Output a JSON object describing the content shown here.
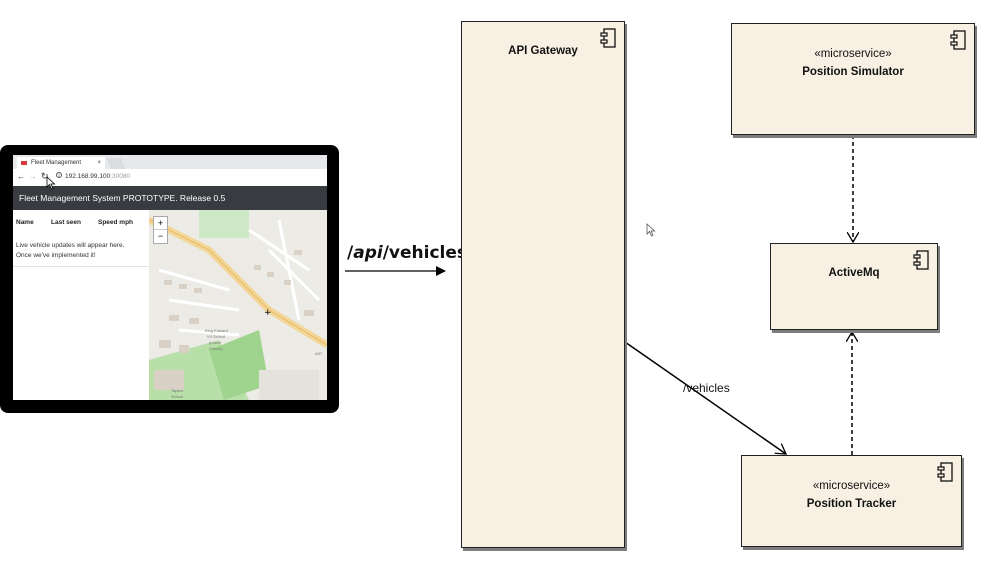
{
  "browser": {
    "tab_title": "Fleet Management",
    "tab_close": "×",
    "address_host": "192.168.99.100",
    "address_port": ":30080",
    "app_header": "Fleet Management System PROTOTYPE. Release 0.5",
    "table_headers": [
      "Name",
      "Last seen",
      "Speed mph"
    ],
    "message_line1": "Live vehicle updates will appear here.",
    "message_line2": "Once we've implemented it!",
    "zoom_in": "+",
    "zoom_out": "−",
    "map_labels": [
      "King Edward",
      "VII School",
      "(Lower",
      "School)",
      "Tapton",
      "School",
      "A57"
    ]
  },
  "arrow_label": {
    "slash1": "/",
    "italic": "api",
    "rest": "/vehicles"
  },
  "components": {
    "gateway": {
      "name": "API Gateway"
    },
    "simulator": {
      "stereotype": "«microservice»",
      "name": "Position Simulator"
    },
    "activemq": {
      "name": "ActiveMq"
    },
    "tracker": {
      "stereotype": "«microservice»",
      "name": "Position Tracker"
    }
  },
  "connector_label": "/vehicles",
  "colors": {
    "component_fill": "#f7f0e3",
    "browser_header": "#383b3f",
    "frame": "#000000"
  },
  "icons": [
    "component-icon",
    "mouse-pointer-icon",
    "back-arrow-icon",
    "forward-arrow-icon",
    "reload-icon",
    "info-icon"
  ]
}
